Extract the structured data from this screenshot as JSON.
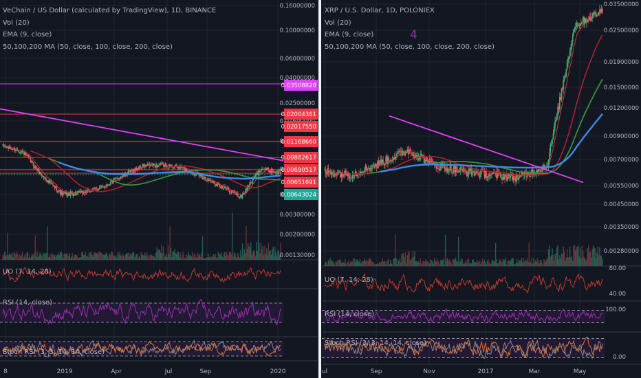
{
  "colors": {
    "background": "#131722",
    "separator": "#f0f3fa",
    "price": "#6aa56b",
    "ema": "#d63b3b",
    "ma50": "#b0202c",
    "ma100": "#3a8f3e",
    "ma200": "#3d8be8",
    "trendline": "#e040fb",
    "uo": "#c0392b",
    "rsi": "#9b2fae",
    "stoch_k": "#8c8c8c",
    "stoch_d": "#d9743a"
  },
  "panels": {
    "left": {
      "title": "VeChain / US Dollar (calculated by TradingView), 1D, BINANCE",
      "vol": "Vol (20)",
      "ema": "EMA (9, close)",
      "ma": "50,100,200 MA (50, close, 100, close, 200, close)",
      "uo": "UO (7, 14, 28)",
      "rsi": "RSI (14, close)",
      "stoch": "Stoch RSI (3, 3, 14, 14, close)",
      "axis_ticks": [
        "0.16000000",
        "0.10000000",
        "0.06000000",
        "0.04000000",
        "0.02500000",
        "0.01600000",
        "0.01000000",
        "0.00600000",
        "0.00450000",
        "0.00300000",
        "0.00200000",
        "0.00130000"
      ],
      "level_labels": [
        {
          "value": "0.03508828",
          "color": "#e040fb"
        },
        {
          "value": "0.02004361",
          "color": "#f23645"
        },
        {
          "value": "0.02017550",
          "color": "#f23645"
        },
        {
          "value": "0.01168660",
          "color": "#f23645"
        },
        {
          "value": "0.00882617",
          "color": "#f23645"
        },
        {
          "value": "0.00690517",
          "color": "#f23645"
        },
        {
          "value": "0.00651691",
          "color": "#f23645"
        },
        {
          "value": "0.00643024",
          "color": "#26a69a"
        }
      ],
      "x_ticks": [
        "8",
        "2019",
        "Apr",
        "Jul",
        "Sep",
        "2020"
      ]
    },
    "right": {
      "title": "XRP / U.S. Dollar, 1D, POLONIEX",
      "vol": "Vol (20)",
      "ema": "EMA (9, close)",
      "ma": "50,100,200 MA (50, close, 100, close, 200, close)",
      "annotation": "4",
      "uo": "UO (7, 14, 28)",
      "rsi": "RSI (14, close)",
      "stoch": "Stoch RSI (3, 3, 14, 14, close)",
      "axis_ticks": [
        "0.03500000",
        "0.02500000",
        "0.01900000",
        "0.01500000",
        "0.01200000",
        "0.00900000",
        "0.00700000",
        "0.00550000",
        "0.00450000",
        "0.00350000",
        "0.00280000"
      ],
      "uo_ticks": [
        "80.00",
        "40.00"
      ],
      "rsi_ticks": [
        "100.00"
      ],
      "stoch_ticks": [
        "0.00"
      ],
      "x_ticks": [
        "ul",
        "Sep",
        "Nov",
        "2017",
        "Mar",
        "May"
      ]
    }
  },
  "chart_data": [
    {
      "type": "line",
      "title": "VeChain / US Dollar (calculated by TradingView), 1D, BINANCE",
      "x": [
        "Oct 2018",
        "Nov 2018",
        "Dec 2018",
        "2019",
        "Feb 2019",
        "Mar 2019",
        "Apr 2019",
        "May 2019",
        "Jun 2019",
        "Jul 2019",
        "Aug 2019",
        "Sep 2019",
        "Oct 2019",
        "Nov 2019",
        "Dec 2019"
      ],
      "series": [
        {
          "name": "close",
          "values": [
            0.0102,
            0.0093,
            0.0058,
            0.0041,
            0.0042,
            0.0047,
            0.0058,
            0.007,
            0.0072,
            0.0068,
            0.0058,
            0.0048,
            0.0039,
            0.0067,
            0.0062
          ]
        }
      ],
      "horizontal_levels": [
        0.03508828,
        0.02004361,
        0.0201755,
        0.0116866,
        0.00882617,
        0.00690517,
        0.00651691,
        0.00643024
      ],
      "trendline": {
        "from": [
          "Sep 2018",
          0.021
        ],
        "to": [
          "Dec 2019",
          0.0078
        ]
      },
      "y_scale": "log",
      "ylim": [
        0.0013,
        0.16
      ]
    },
    {
      "type": "line",
      "title": "XRP / U.S. Dollar, 1D, POLONIEX",
      "x": [
        "Jul 2016",
        "Aug 2016",
        "Sep 2016",
        "Oct 2016",
        "Nov 2016",
        "Dec 2016",
        "2017",
        "Feb 2017",
        "Mar 2017",
        "Apr 2017",
        "May 2017"
      ],
      "series": [
        {
          "name": "close",
          "values": [
            0.0064,
            0.0062,
            0.007,
            0.008,
            0.0068,
            0.0064,
            0.0062,
            0.006,
            0.0068,
            0.03,
            0.035
          ]
        }
      ],
      "trendline": {
        "from": [
          "Sep 2016",
          0.0115
        ],
        "to": [
          "Apr 2017",
          0.0057
        ]
      },
      "y_scale": "log",
      "ylim": [
        0.0025,
        0.038
      ]
    }
  ]
}
